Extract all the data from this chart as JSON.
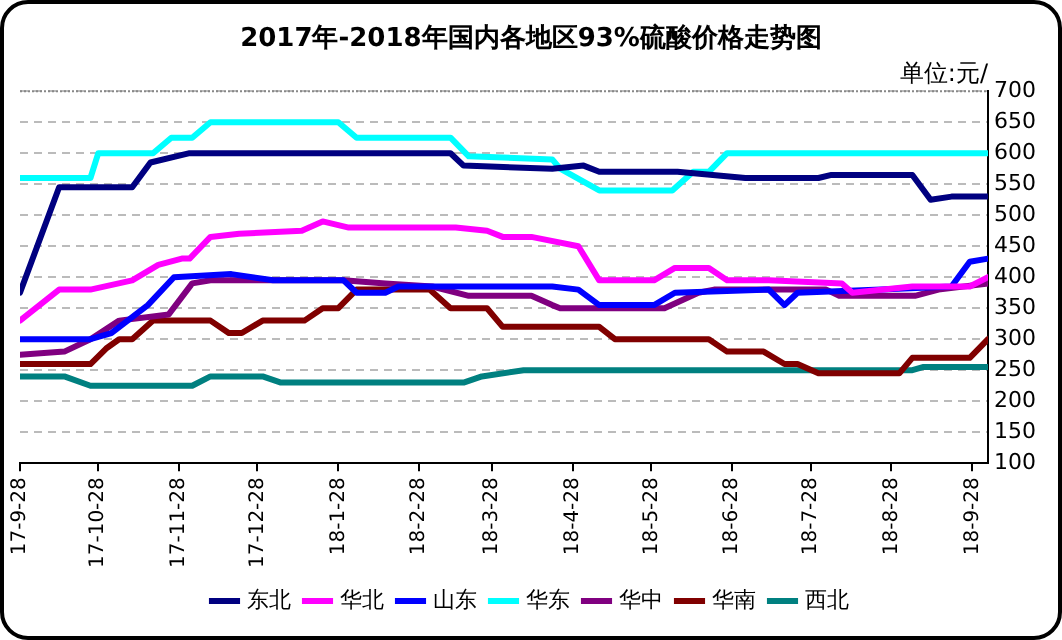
{
  "chart_data": {
    "type": "line",
    "title": "2017年-2018年国内各地区93%硫酸价格走势图",
    "ylabel": "单位:元/",
    "xlim": [
      "2017-09-28",
      "2018-10-04"
    ],
    "xticks": [
      {
        "value": "2017-09-28",
        "label": "17-9-28"
      },
      {
        "value": "2017-10-28",
        "label": "17-10-28"
      },
      {
        "value": "2017-11-28",
        "label": "17-11-28"
      },
      {
        "value": "2017-12-28",
        "label": "17-12-28"
      },
      {
        "value": "2018-01-28",
        "label": "18-1-28"
      },
      {
        "value": "2018-02-28",
        "label": "18-2-28"
      },
      {
        "value": "2018-03-28",
        "label": "18-3-28"
      },
      {
        "value": "2018-04-28",
        "label": "18-4-28"
      },
      {
        "value": "2018-05-28",
        "label": "18-5-28"
      },
      {
        "value": "2018-06-28",
        "label": "18-6-28"
      },
      {
        "value": "2018-07-28",
        "label": "18-7-28"
      },
      {
        "value": "2018-08-28",
        "label": "18-8-28"
      },
      {
        "value": "2018-09-28",
        "label": "18-9-28"
      }
    ],
    "ylim": [
      100,
      700
    ],
    "yticks": [
      100,
      150,
      200,
      250,
      300,
      350,
      400,
      450,
      500,
      550,
      600,
      650,
      700
    ],
    "grid": "y",
    "legend": "bottom",
    "marker": "none",
    "line_style": "solid",
    "series": [
      {
        "name": "东北",
        "color": "#000080",
        "x": [
          "2017-09-28",
          "2017-10-13",
          "2017-11-10",
          "2017-11-17",
          "2017-12-02",
          "2018-03-12",
          "2018-03-17",
          "2018-04-20",
          "2018-05-02",
          "2018-05-08",
          "2018-06-07",
          "2018-07-03",
          "2018-07-31",
          "2018-08-05",
          "2018-09-05",
          "2018-09-12",
          "2018-09-20",
          "2018-10-04"
        ],
        "values": [
          375,
          545,
          545,
          585,
          600,
          600,
          580,
          575,
          580,
          570,
          570,
          560,
          560,
          565,
          565,
          525,
          530,
          530
        ]
      },
      {
        "name": "华北",
        "color": "#ff00ff",
        "x": [
          "2017-09-28",
          "2017-10-13",
          "2017-10-25",
          "2017-11-10",
          "2017-11-20",
          "2017-11-29",
          "2017-12-02",
          "2017-12-10",
          "2017-12-21",
          "2018-01-14",
          "2018-01-22",
          "2018-02-01",
          "2018-03-14",
          "2018-03-26",
          "2018-04-01",
          "2018-04-12",
          "2018-04-30",
          "2018-05-08",
          "2018-05-29",
          "2018-06-06",
          "2018-06-19",
          "2018-06-26",
          "2018-07-12",
          "2018-08-09",
          "2018-08-13",
          "2018-09-05",
          "2018-09-27",
          "2018-10-04"
        ],
        "values": [
          330,
          380,
          380,
          395,
          420,
          430,
          430,
          465,
          470,
          475,
          490,
          480,
          480,
          475,
          465,
          465,
          450,
          395,
          395,
          415,
          415,
          395,
          395,
          390,
          375,
          385,
          385,
          400
        ]
      },
      {
        "name": "山东",
        "color": "#0000ff",
        "x": [
          "2017-09-28",
          "2017-10-25",
          "2017-11-02",
          "2017-11-16",
          "2017-11-26",
          "2017-12-18",
          "2018-01-03",
          "2018-01-30",
          "2018-02-04",
          "2018-02-15",
          "2018-02-20",
          "2018-04-20",
          "2018-04-30",
          "2018-05-08",
          "2018-05-29",
          "2018-06-06",
          "2018-07-12",
          "2018-07-18",
          "2018-07-23",
          "2018-08-24",
          "2018-09-20",
          "2018-09-27",
          "2018-10-04"
        ],
        "values": [
          300,
          300,
          310,
          355,
          400,
          405,
          395,
          395,
          375,
          375,
          385,
          385,
          380,
          355,
          355,
          375,
          380,
          355,
          375,
          380,
          385,
          425,
          430
        ]
      },
      {
        "name": "华东",
        "color": "#00ffff",
        "x": [
          "2017-09-28",
          "2017-10-25",
          "2017-10-28",
          "2017-11-18",
          "2017-11-25",
          "2017-12-03",
          "2017-12-10",
          "2018-01-28",
          "2018-02-04",
          "2018-03-12",
          "2018-03-19",
          "2018-04-20",
          "2018-04-23",
          "2018-05-08",
          "2018-06-05",
          "2018-06-13",
          "2018-06-19",
          "2018-06-26",
          "2018-10-04"
        ],
        "values": [
          560,
          560,
          600,
          600,
          625,
          625,
          650,
          650,
          625,
          625,
          595,
          590,
          575,
          540,
          540,
          570,
          570,
          600,
          600
        ]
      },
      {
        "name": "华中",
        "color": "#800080",
        "x": [
          "2017-09-28",
          "2017-10-15",
          "2017-10-25",
          "2017-11-05",
          "2017-11-24",
          "2017-12-03",
          "2017-12-10",
          "2018-01-30",
          "2018-02-15",
          "2018-03-05",
          "2018-03-19",
          "2018-04-12",
          "2018-04-20",
          "2018-04-23",
          "2018-06-02",
          "2018-06-15",
          "2018-06-21",
          "2018-08-03",
          "2018-08-08",
          "2018-09-06",
          "2018-09-15",
          "2018-10-04"
        ],
        "values": [
          275,
          280,
          300,
          330,
          340,
          390,
          395,
          395,
          390,
          385,
          370,
          370,
          355,
          350,
          350,
          375,
          380,
          380,
          370,
          370,
          380,
          390
        ]
      },
      {
        "name": "华南",
        "color": "#800000",
        "x": [
          "2017-09-28",
          "2017-10-25",
          "2017-10-31",
          "2017-11-05",
          "2017-11-10",
          "2017-11-18",
          "2017-12-10",
          "2017-12-17",
          "2017-12-22",
          "2017-12-30",
          "2018-01-15",
          "2018-01-22",
          "2018-01-28",
          "2018-02-04",
          "2018-03-04",
          "2018-03-12",
          "2018-03-26",
          "2018-04-01",
          "2018-05-08",
          "2018-05-14",
          "2018-06-19",
          "2018-06-26",
          "2018-07-10",
          "2018-07-18",
          "2018-07-23",
          "2018-07-31",
          "2018-08-31",
          "2018-09-05",
          "2018-09-27",
          "2018-10-04"
        ],
        "values": [
          260,
          260,
          285,
          300,
          300,
          330,
          330,
          310,
          310,
          330,
          330,
          350,
          350,
          380,
          380,
          350,
          350,
          320,
          320,
          300,
          300,
          280,
          280,
          260,
          260,
          245,
          245,
          270,
          270,
          300
        ]
      },
      {
        "name": "西北",
        "color": "#008080",
        "x": [
          "2017-09-28",
          "2017-10-15",
          "2017-10-25",
          "2017-12-03",
          "2017-12-10",
          "2017-12-30",
          "2018-01-06",
          "2018-03-17",
          "2018-03-24",
          "2018-04-09",
          "2018-09-05",
          "2018-09-09",
          "2018-10-04"
        ],
        "values": [
          240,
          240,
          225,
          225,
          240,
          240,
          230,
          230,
          240,
          250,
          250,
          255,
          255
        ]
      }
    ]
  }
}
